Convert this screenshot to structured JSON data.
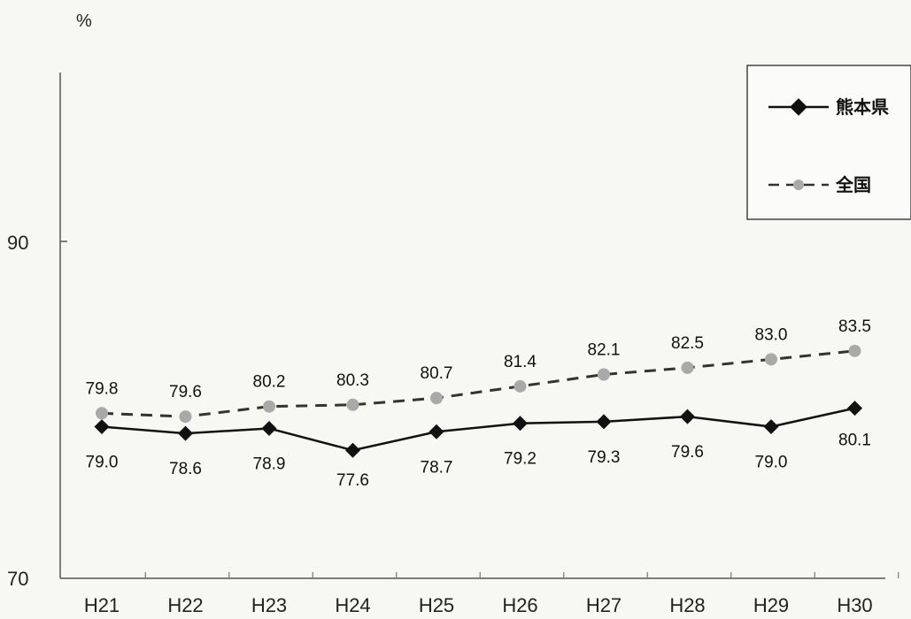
{
  "chart_data": {
    "type": "line",
    "y_unit": "%",
    "ylim": [
      70,
      90
    ],
    "y_ticks": [
      "90",
      "70"
    ],
    "categories": [
      "H21",
      "H22",
      "H23",
      "H24",
      "H25",
      "H26",
      "H27",
      "H28",
      "H29",
      "H30"
    ],
    "series": [
      {
        "name": "熊本県",
        "values": [
          79.0,
          78.6,
          78.9,
          77.6,
          78.7,
          79.2,
          79.3,
          79.6,
          79.0,
          80.1
        ],
        "labels": [
          "79.0",
          "78.6",
          "78.9",
          "77.6",
          "78.7",
          "79.2",
          "79.3",
          "79.6",
          "79.0",
          "80.1"
        ],
        "color": "#111111",
        "line_style": "solid",
        "marker": "diamond"
      },
      {
        "name": "全国",
        "values": [
          79.8,
          79.6,
          80.2,
          80.3,
          80.7,
          81.4,
          82.1,
          82.5,
          83.0,
          83.5
        ],
        "labels": [
          "79.8",
          "79.6",
          "80.2",
          "80.3",
          "80.7",
          "81.4",
          "82.1",
          "82.5",
          "83.0",
          "83.5"
        ],
        "color": "#333333",
        "marker_color": "#a9a9a9",
        "line_style": "dashed",
        "marker": "circle"
      }
    ],
    "legend_position": "top-right",
    "grid": false
  }
}
